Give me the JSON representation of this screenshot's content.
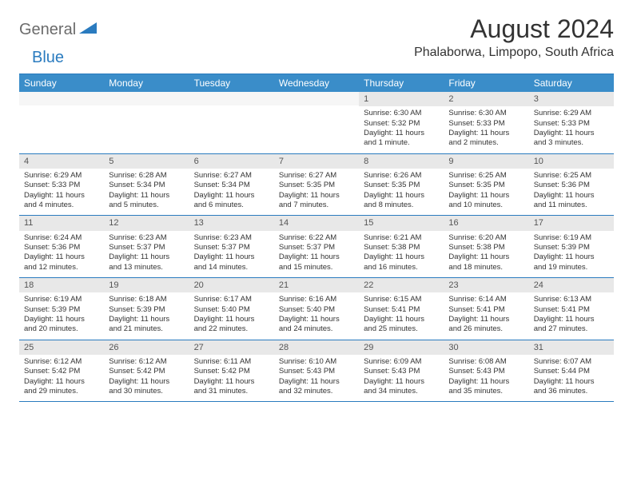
{
  "brand": {
    "part1": "General",
    "part2": "Blue"
  },
  "title": "August 2024",
  "location": "Phalaborwa, Limpopo, South Africa",
  "colors": {
    "header_bg": "#3a8dc9",
    "border": "#2a7bbf",
    "daynum_bg": "#e8e8e8",
    "text": "#333333"
  },
  "weekdays": [
    "Sunday",
    "Monday",
    "Tuesday",
    "Wednesday",
    "Thursday",
    "Friday",
    "Saturday"
  ],
  "weeks": [
    [
      null,
      null,
      null,
      null,
      {
        "n": "1",
        "sr": "6:30 AM",
        "ss": "5:32 PM",
        "dl": "11 hours and 1 minute."
      },
      {
        "n": "2",
        "sr": "6:30 AM",
        "ss": "5:33 PM",
        "dl": "11 hours and 2 minutes."
      },
      {
        "n": "3",
        "sr": "6:29 AM",
        "ss": "5:33 PM",
        "dl": "11 hours and 3 minutes."
      }
    ],
    [
      {
        "n": "4",
        "sr": "6:29 AM",
        "ss": "5:33 PM",
        "dl": "11 hours and 4 minutes."
      },
      {
        "n": "5",
        "sr": "6:28 AM",
        "ss": "5:34 PM",
        "dl": "11 hours and 5 minutes."
      },
      {
        "n": "6",
        "sr": "6:27 AM",
        "ss": "5:34 PM",
        "dl": "11 hours and 6 minutes."
      },
      {
        "n": "7",
        "sr": "6:27 AM",
        "ss": "5:35 PM",
        "dl": "11 hours and 7 minutes."
      },
      {
        "n": "8",
        "sr": "6:26 AM",
        "ss": "5:35 PM",
        "dl": "11 hours and 8 minutes."
      },
      {
        "n": "9",
        "sr": "6:25 AM",
        "ss": "5:35 PM",
        "dl": "11 hours and 10 minutes."
      },
      {
        "n": "10",
        "sr": "6:25 AM",
        "ss": "5:36 PM",
        "dl": "11 hours and 11 minutes."
      }
    ],
    [
      {
        "n": "11",
        "sr": "6:24 AM",
        "ss": "5:36 PM",
        "dl": "11 hours and 12 minutes."
      },
      {
        "n": "12",
        "sr": "6:23 AM",
        "ss": "5:37 PM",
        "dl": "11 hours and 13 minutes."
      },
      {
        "n": "13",
        "sr": "6:23 AM",
        "ss": "5:37 PM",
        "dl": "11 hours and 14 minutes."
      },
      {
        "n": "14",
        "sr": "6:22 AM",
        "ss": "5:37 PM",
        "dl": "11 hours and 15 minutes."
      },
      {
        "n": "15",
        "sr": "6:21 AM",
        "ss": "5:38 PM",
        "dl": "11 hours and 16 minutes."
      },
      {
        "n": "16",
        "sr": "6:20 AM",
        "ss": "5:38 PM",
        "dl": "11 hours and 18 minutes."
      },
      {
        "n": "17",
        "sr": "6:19 AM",
        "ss": "5:39 PM",
        "dl": "11 hours and 19 minutes."
      }
    ],
    [
      {
        "n": "18",
        "sr": "6:19 AM",
        "ss": "5:39 PM",
        "dl": "11 hours and 20 minutes."
      },
      {
        "n": "19",
        "sr": "6:18 AM",
        "ss": "5:39 PM",
        "dl": "11 hours and 21 minutes."
      },
      {
        "n": "20",
        "sr": "6:17 AM",
        "ss": "5:40 PM",
        "dl": "11 hours and 22 minutes."
      },
      {
        "n": "21",
        "sr": "6:16 AM",
        "ss": "5:40 PM",
        "dl": "11 hours and 24 minutes."
      },
      {
        "n": "22",
        "sr": "6:15 AM",
        "ss": "5:41 PM",
        "dl": "11 hours and 25 minutes."
      },
      {
        "n": "23",
        "sr": "6:14 AM",
        "ss": "5:41 PM",
        "dl": "11 hours and 26 minutes."
      },
      {
        "n": "24",
        "sr": "6:13 AM",
        "ss": "5:41 PM",
        "dl": "11 hours and 27 minutes."
      }
    ],
    [
      {
        "n": "25",
        "sr": "6:12 AM",
        "ss": "5:42 PM",
        "dl": "11 hours and 29 minutes."
      },
      {
        "n": "26",
        "sr": "6:12 AM",
        "ss": "5:42 PM",
        "dl": "11 hours and 30 minutes."
      },
      {
        "n": "27",
        "sr": "6:11 AM",
        "ss": "5:42 PM",
        "dl": "11 hours and 31 minutes."
      },
      {
        "n": "28",
        "sr": "6:10 AM",
        "ss": "5:43 PM",
        "dl": "11 hours and 32 minutes."
      },
      {
        "n": "29",
        "sr": "6:09 AM",
        "ss": "5:43 PM",
        "dl": "11 hours and 34 minutes."
      },
      {
        "n": "30",
        "sr": "6:08 AM",
        "ss": "5:43 PM",
        "dl": "11 hours and 35 minutes."
      },
      {
        "n": "31",
        "sr": "6:07 AM",
        "ss": "5:44 PM",
        "dl": "11 hours and 36 minutes."
      }
    ]
  ],
  "labels": {
    "sunrise": "Sunrise:",
    "sunset": "Sunset:",
    "daylight": "Daylight:"
  }
}
